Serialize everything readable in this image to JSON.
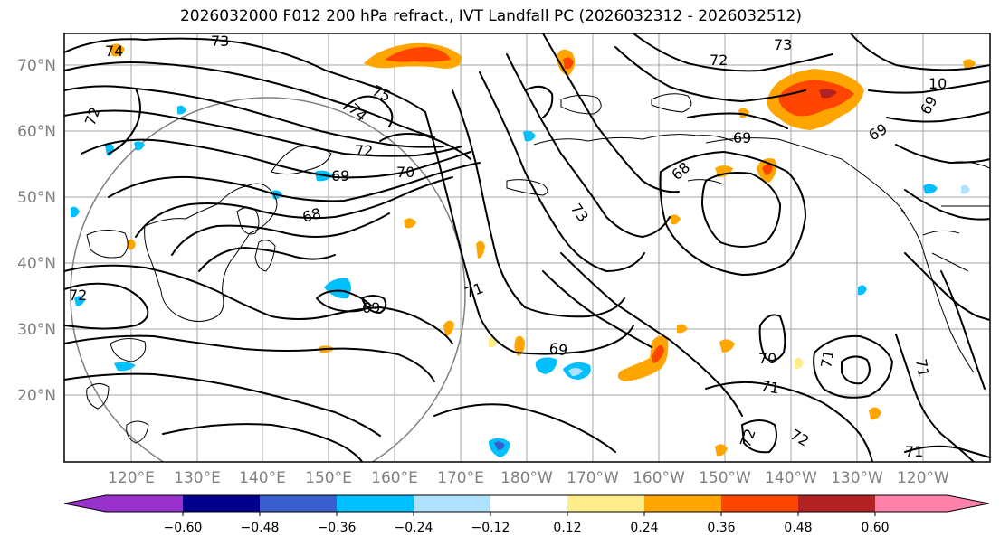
{
  "title": "2026032000 F012 200 hPa refract., IVT Landfall PC (2026032312 - 2026032512)",
  "lat_labels": [
    "70°N",
    "60°N",
    "50°N",
    "40°N",
    "30°N",
    "20°N"
  ],
  "lon_labels": [
    "120°E",
    "130°E",
    "140°E",
    "150°E",
    "160°E",
    "170°E",
    "180°W",
    "170°W",
    "160°W",
    "150°W",
    "140°W",
    "130°W",
    "120°W"
  ],
  "contour_labels": [
    "74",
    "73",
    "72",
    "72",
    "73",
    "10",
    "75",
    "74",
    "72",
    "69",
    "70",
    "69",
    "68",
    "69",
    "73",
    "68",
    "69",
    "72",
    "71",
    "69",
    "70",
    "71",
    "71",
    "72",
    "72",
    "71",
    "69",
    "71"
  ],
  "colorbar": {
    "ticks": [
      "−0.60",
      "−0.48",
      "−0.36",
      "−0.24",
      "−0.12",
      "0.12",
      "0.24",
      "0.36",
      "0.48",
      "0.60"
    ],
    "colors": [
      "#9932cc",
      "#00008b",
      "#3a5fcd",
      "#00bfff",
      "#b0e2ff",
      "#ffffff",
      "#ffec8b",
      "#ffa500",
      "#ff4500",
      "#b22222",
      "#ff82ab"
    ]
  }
}
